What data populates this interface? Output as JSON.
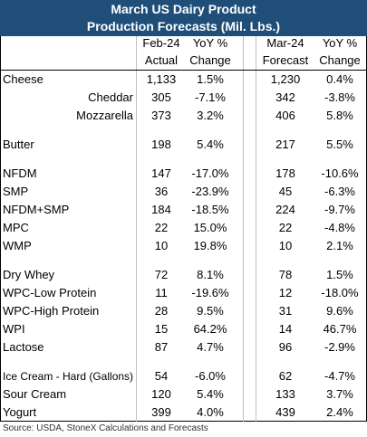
{
  "header": {
    "title": [
      "March US Dairy Product",
      "Production Forecasts (Mil. Lbs.)"
    ]
  },
  "table": {
    "columns": [
      [
        "Feb-24",
        "Actual"
      ],
      [
        "YoY %",
        "Change"
      ],
      [
        "Mar-24",
        "Forecast"
      ],
      [
        "YoY %",
        "Change"
      ]
    ],
    "groups": [
      [
        {
          "label": "Cheese",
          "values": [
            "1,133",
            "1.5%",
            "1,230",
            "0.4%"
          ],
          "items": [
            {
              "label": "Cheddar",
              "values": [
                "305",
                "-7.1%",
                "342",
                "-3.8%"
              ]
            },
            {
              "label": "Mozzarella",
              "values": [
                "373",
                "3.2%",
                "406",
                "5.8%"
              ]
            }
          ]
        }
      ],
      [
        {
          "label": "Butter",
          "values": [
            "198",
            "5.4%",
            "217",
            "5.5%"
          ]
        }
      ],
      [
        {
          "label": "NFDM",
          "values": [
            "147",
            "-17.0%",
            "178",
            "-10.6%"
          ]
        },
        {
          "label": "SMP",
          "values": [
            "36",
            "-23.9%",
            "45",
            "-6.3%"
          ]
        },
        {
          "label": "NFDM+SMP",
          "values": [
            "184",
            "-18.5%",
            "224",
            "-9.7%"
          ]
        },
        {
          "label": "MPC",
          "values": [
            "22",
            "15.0%",
            "22",
            "-4.8%"
          ]
        },
        {
          "label": "WMP",
          "values": [
            "10",
            "19.8%",
            "10",
            "2.1%"
          ]
        }
      ],
      [
        {
          "label": "Dry Whey",
          "values": [
            "72",
            "8.1%",
            "78",
            "1.5%"
          ]
        },
        {
          "label": "WPC-Low Protein",
          "values": [
            "11",
            "-19.6%",
            "12",
            "-18.0%"
          ]
        },
        {
          "label": "WPC-High Protein",
          "values": [
            "28",
            "9.5%",
            "31",
            "9.6%"
          ]
        },
        {
          "label": "WPI",
          "values": [
            "15",
            "64.2%",
            "14",
            "46.7%"
          ]
        },
        {
          "label": "Lactose",
          "values": [
            "87",
            "4.7%",
            "96",
            "-2.9%"
          ]
        }
      ],
      [
        {
          "label": "Ice Cream - Hard (Gallons)",
          "values": [
            "54",
            "-6.0%",
            "62",
            "-4.7%"
          ]
        },
        {
          "label": "Sour Cream",
          "values": [
            "120",
            "5.4%",
            "133",
            "3.7%"
          ]
        },
        {
          "label": "Yogurt",
          "values": [
            "399",
            "4.0%",
            "439",
            "2.4%"
          ]
        }
      ]
    ]
  },
  "source": "Source: USDA, StoneX Calculations and Forecasts"
}
